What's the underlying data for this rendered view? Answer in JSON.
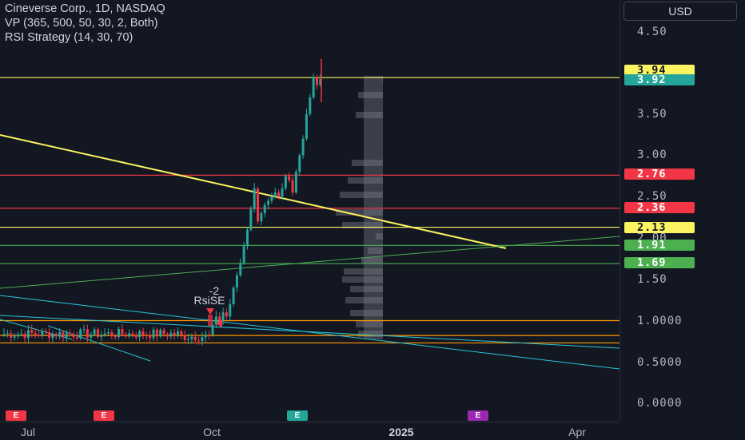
{
  "legend": {
    "symbol": "Cineverse Corp., 1D, NASDAQ",
    "vp": "VP (365, 500, 50, 30, 2, Both)",
    "rsi": "RSI Strategy (14, 30, 70)"
  },
  "currency": "USD",
  "price_axis": {
    "labels": [
      "4.50",
      "3.50",
      "3.00",
      "2.50",
      "2.00",
      "1.50",
      "1.0000",
      "0.5000",
      "0.0000"
    ]
  },
  "price_tags": [
    {
      "label": "3.94",
      "value": 3.94,
      "bg": "#fbf35f",
      "fg": "#131722"
    },
    {
      "label": "3.92",
      "value": 3.92,
      "bg": "#26a69a",
      "fg": "#ffffff"
    },
    {
      "label": "2.76",
      "value": 2.76,
      "bg": "#f23645",
      "fg": "#ffffff"
    },
    {
      "label": "2.36",
      "value": 2.36,
      "bg": "#f23645",
      "fg": "#ffffff"
    },
    {
      "label": "2.13",
      "value": 2.13,
      "bg": "#fbf35f",
      "fg": "#131722"
    },
    {
      "label": "1.91",
      "value": 1.91,
      "bg": "#4caf50",
      "fg": "#ffffff"
    },
    {
      "label": "1.69",
      "value": 1.69,
      "bg": "#4caf50",
      "fg": "#ffffff"
    }
  ],
  "time_axis": {
    "labels": [
      {
        "text": "Jul",
        "strong": false
      },
      {
        "text": "Oct",
        "strong": false
      },
      {
        "text": "2025",
        "strong": true
      },
      {
        "text": "Apr",
        "strong": false
      }
    ]
  },
  "signal": {
    "count": "-2",
    "name": "RsiSE"
  },
  "earnings_badges": [
    {
      "text": "E",
      "color": "#f23645"
    },
    {
      "text": "E",
      "color": "#f23645"
    },
    {
      "text": "E",
      "color": "#26a69a"
    },
    {
      "text": "E",
      "color": "#9c27b0"
    }
  ],
  "horizontal_levels": [
    {
      "price": 3.94,
      "color": "#fbf35f"
    },
    {
      "price": 2.76,
      "color": "#f23645"
    },
    {
      "price": 2.36,
      "color": "#f23645"
    },
    {
      "price": 2.13,
      "color": "#fbf35f"
    },
    {
      "price": 1.91,
      "color": "#4caf50"
    },
    {
      "price": 1.69,
      "color": "#4caf50"
    },
    {
      "price": 1.0,
      "color": "#ff9800"
    },
    {
      "price": 0.82,
      "color": "#ff9800"
    },
    {
      "price": 0.73,
      "color": "#ff9800"
    }
  ],
  "colors": {
    "up": "#26a69a",
    "down": "#f23645",
    "background": "#131722"
  }
}
